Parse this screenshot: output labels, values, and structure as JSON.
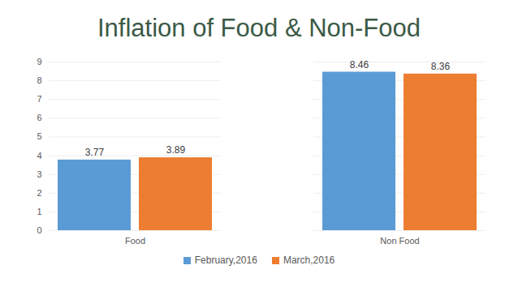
{
  "chart_data": {
    "type": "bar",
    "title": "Inflation of Food & Non-Food",
    "categories": [
      "Food",
      "Non Food"
    ],
    "series": [
      {
        "name": "February,2016",
        "color": "#5b9bd5",
        "values": [
          3.77,
          8.46
        ]
      },
      {
        "name": "March,2016",
        "color": "#ed7d31",
        "values": [
          3.89,
          8.36
        ]
      }
    ],
    "ylim": [
      0,
      9
    ],
    "yticks": [
      0,
      1,
      2,
      3,
      4,
      5,
      6,
      7,
      8,
      9
    ],
    "grid": true,
    "data_labels": true,
    "legend": "bottom"
  }
}
